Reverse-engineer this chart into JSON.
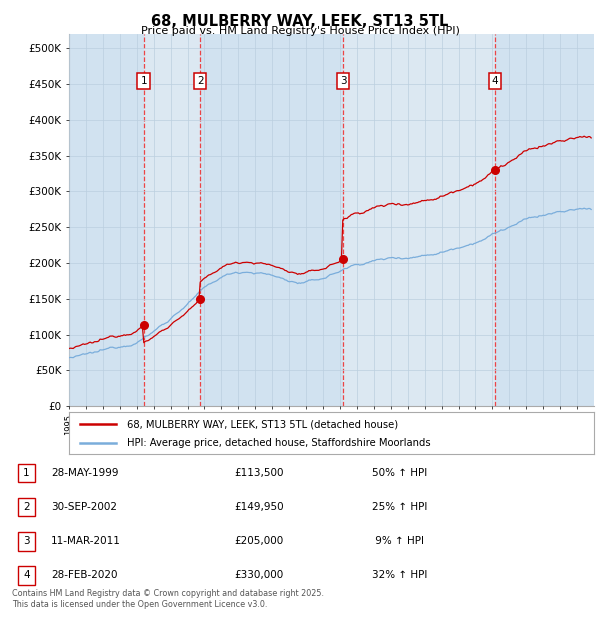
{
  "title": "68, MULBERRY WAY, LEEK, ST13 5TL",
  "subtitle": "Price paid vs. HM Land Registry's House Price Index (HPI)",
  "ylabel_ticks": [
    "£0",
    "£50K",
    "£100K",
    "£150K",
    "£200K",
    "£250K",
    "£300K",
    "£350K",
    "£400K",
    "£450K",
    "£500K"
  ],
  "ytick_values": [
    0,
    50000,
    100000,
    150000,
    200000,
    250000,
    300000,
    350000,
    400000,
    450000,
    500000
  ],
  "ylim": [
    0,
    520000
  ],
  "sale_dates": [
    1999.41,
    2002.75,
    2011.19,
    2020.16
  ],
  "sale_prices": [
    113500,
    149950,
    205000,
    330000
  ],
  "sale_labels": [
    "1",
    "2",
    "3",
    "4"
  ],
  "legend_line1": "68, MULBERRY WAY, LEEK, ST13 5TL (detached house)",
  "legend_line2": "HPI: Average price, detached house, Staffordshire Moorlands",
  "table_data": [
    [
      "1",
      "28-MAY-1999",
      "£113,500",
      "50% ↑ HPI"
    ],
    [
      "2",
      "30-SEP-2002",
      "£149,950",
      "25% ↑ HPI"
    ],
    [
      "3",
      "11-MAR-2011",
      "£205,000",
      " 9% ↑ HPI"
    ],
    [
      "4",
      "28-FEB-2020",
      "£330,000",
      "32% ↑ HPI"
    ]
  ],
  "footer": "Contains HM Land Registry data © Crown copyright and database right 2025.\nThis data is licensed under the Open Government Licence v3.0.",
  "hpi_color": "#7aaddb",
  "price_color": "#cc0000",
  "vline_color": "#ee3333",
  "plot_bg": "#dce8f2",
  "grid_color": "#bbcfdf",
  "box_color": "#cc0000",
  "xstart": 1995,
  "xend": 2026
}
